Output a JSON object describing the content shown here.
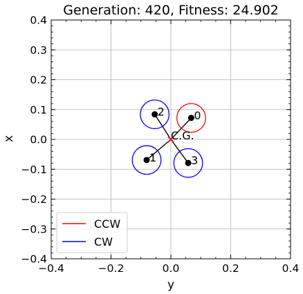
{
  "chart_data": {
    "type": "scatter",
    "title": "Generation: 420, Fitness: 24.902",
    "xlabel": "y",
    "ylabel": "x",
    "xlim": [
      -0.4,
      0.4
    ],
    "ylim": [
      -0.4,
      0.4
    ],
    "xticks": [
      -0.4,
      -0.2,
      0.0,
      0.2,
      0.4
    ],
    "yticks": [
      -0.4,
      -0.3,
      -0.2,
      -0.1,
      0.0,
      0.1,
      0.2,
      0.3,
      0.4
    ],
    "xtick_labels": [
      "−0.4",
      "−0.2",
      "0.0",
      "0.2",
      "0.4"
    ],
    "ytick_labels": [
      "−0.4",
      "−0.3",
      "−0.2",
      "−0.1",
      "0.0",
      "0.1",
      "0.2",
      "0.3",
      "0.4"
    ],
    "grid": true,
    "cg": {
      "x": 0.0,
      "y": 0.0,
      "label": "C.G."
    },
    "rotor_radius": 0.048,
    "rotors": [
      {
        "id": "0",
        "x": 0.068,
        "y": 0.072,
        "direction": "CCW"
      },
      {
        "id": "1",
        "x": -0.081,
        "y": -0.069,
        "direction": "CW"
      },
      {
        "id": "2",
        "x": -0.054,
        "y": 0.084,
        "direction": "CW"
      },
      {
        "id": "3",
        "x": 0.058,
        "y": -0.079,
        "direction": "CW"
      }
    ],
    "colors": {
      "CCW": "#ff0000",
      "CW": "#0000ff",
      "arm": "#000000",
      "cg_cross": "#d62728"
    },
    "legend": {
      "placement": "lower-left",
      "entries": [
        {
          "label": "CCW",
          "color": "#ff0000"
        },
        {
          "label": "CW",
          "color": "#0000ff"
        }
      ]
    }
  }
}
